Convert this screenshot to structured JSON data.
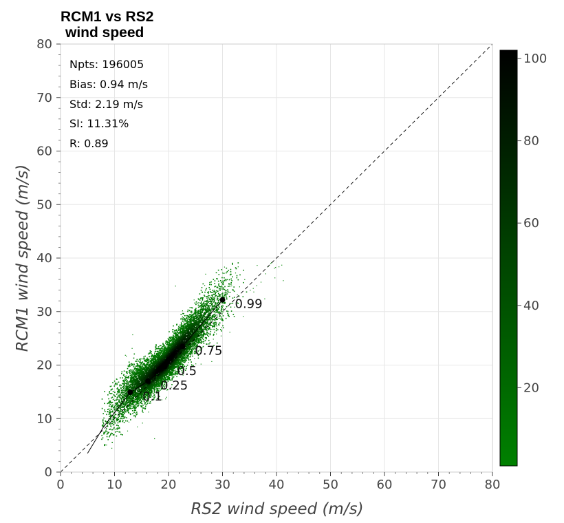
{
  "chart_data": {
    "type": "scatter",
    "subtype": "density-scatter",
    "title_line1": "RCM1 vs RS2",
    "title_line2": "wind speed",
    "xlabel": "RS2 wind speed (m/s)",
    "ylabel": "RCM1 wind speed (m/s)",
    "xlim": [
      0,
      80
    ],
    "ylim": [
      0,
      80
    ],
    "xticks": [
      0,
      10,
      20,
      30,
      40,
      50,
      60,
      70,
      80
    ],
    "yticks": [
      0,
      10,
      20,
      30,
      40,
      50,
      60,
      70,
      80
    ],
    "grid": true,
    "stats": {
      "npts": "Npts: 196005",
      "bias": "Bias: 0.94 m/s",
      "std": "Std: 2.19 m/s",
      "si": "SI: 11.31%",
      "r": "R: 0.89"
    },
    "identity_line": true,
    "quantiles": [
      {
        "label": "0.1",
        "x": 12.9,
        "y": 14.9
      },
      {
        "label": "0.25",
        "x": 16.2,
        "y": 17.0
      },
      {
        "label": "0.5",
        "x": 19.3,
        "y": 19.7
      },
      {
        "label": "0.75",
        "x": 22.6,
        "y": 23.5
      },
      {
        "label": "0.99",
        "x": 30.0,
        "y": 32.2
      }
    ],
    "quantile_line": {
      "x": [
        5.0,
        8.0,
        12.9,
        16.2,
        19.3,
        22.6,
        30.0
      ],
      "y": [
        3.5,
        8.5,
        14.9,
        17.0,
        19.7,
        23.5,
        32.2
      ]
    },
    "colorbar": {
      "ticks": [
        20,
        40,
        60,
        80,
        100
      ],
      "min": 1,
      "max": 102,
      "color_low": "#008000",
      "color_high": "#000000"
    }
  }
}
